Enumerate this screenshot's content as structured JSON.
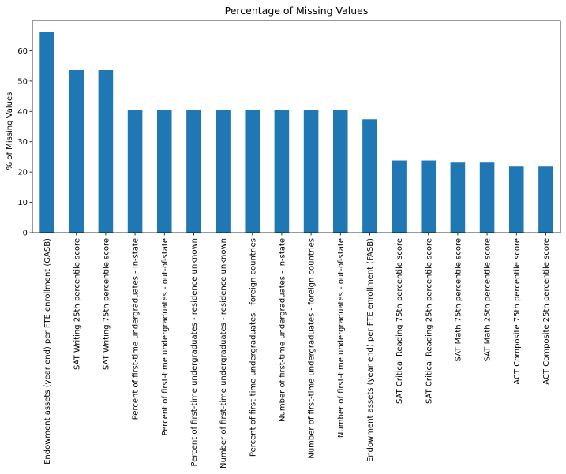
{
  "chart_data": {
    "type": "bar",
    "title": "Percentage of Missing Values",
    "xlabel": "",
    "ylabel": "% of Missing Values",
    "ylim": [
      0,
      70
    ],
    "yticks": [
      "0",
      "10",
      "20",
      "30",
      "40",
      "50",
      "60"
    ],
    "grid": false,
    "legend": "none",
    "bar_color": "#1f77b4",
    "categories": [
      "Endowment assets (year end) per FTE enrollment (GASB)",
      "SAT Writing 25th percentile score",
      "SAT Writing 75th percentile score",
      "Percent of first-time undergraduates - in-state",
      "Percent of first-time undergraduates - out-of-state",
      "Percent of first-time undergraduates - residence unknown",
      "Number of first-time undergraduates - residence unknown",
      "Percent of first-time undergraduates - foreign countries",
      "Number of first-time undergraduates - in-state",
      "Number of first-time undergraduates - foreign countries",
      "Number of first-time undergraduates - out-of-state",
      "Endowment assets (year end) per FTE enrollment (FASB)",
      "SAT Critical Reading 75th percentile score",
      "SAT Critical Reading 25th percentile score",
      "SAT Math 75th percentile score",
      "SAT Math 25th percentile score",
      "ACT Composite 75th percentile score",
      "ACT Composite 25th percentile score"
    ],
    "values": [
      66.3,
      53.6,
      53.6,
      40.5,
      40.5,
      40.5,
      40.5,
      40.5,
      40.5,
      40.5,
      40.5,
      37.4,
      23.8,
      23.8,
      23.1,
      23.1,
      21.8,
      21.8
    ]
  }
}
